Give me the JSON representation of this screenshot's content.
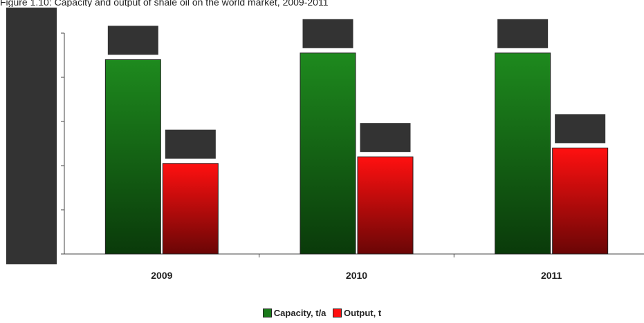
{
  "title": "Figure 1.10: Capacity and output of shale oil on the world market, 2009-2011",
  "chart_data": {
    "type": "bar",
    "categories": [
      "2009",
      "2010",
      "2011"
    ],
    "series": [
      {
        "name": "Capacity, t/a",
        "values": [
          88,
          91,
          91
        ],
        "color": "#1a7a1a"
      },
      {
        "name": "Output, t",
        "values": [
          41,
          44,
          48
        ],
        "color": "#ff1010"
      }
    ],
    "ylim": [
      0,
      100
    ],
    "grid": false,
    "legend_position": "bottom-center",
    "label_boxes": "dark boxes above bars (values obscured)"
  },
  "legend": {
    "capacity_label": "Capacity, t/a",
    "output_label": "Output, t"
  },
  "colors": {
    "capacity": "#1a7a1a",
    "output": "#ff1010",
    "redaction": "#333333",
    "axis": "#444444"
  }
}
